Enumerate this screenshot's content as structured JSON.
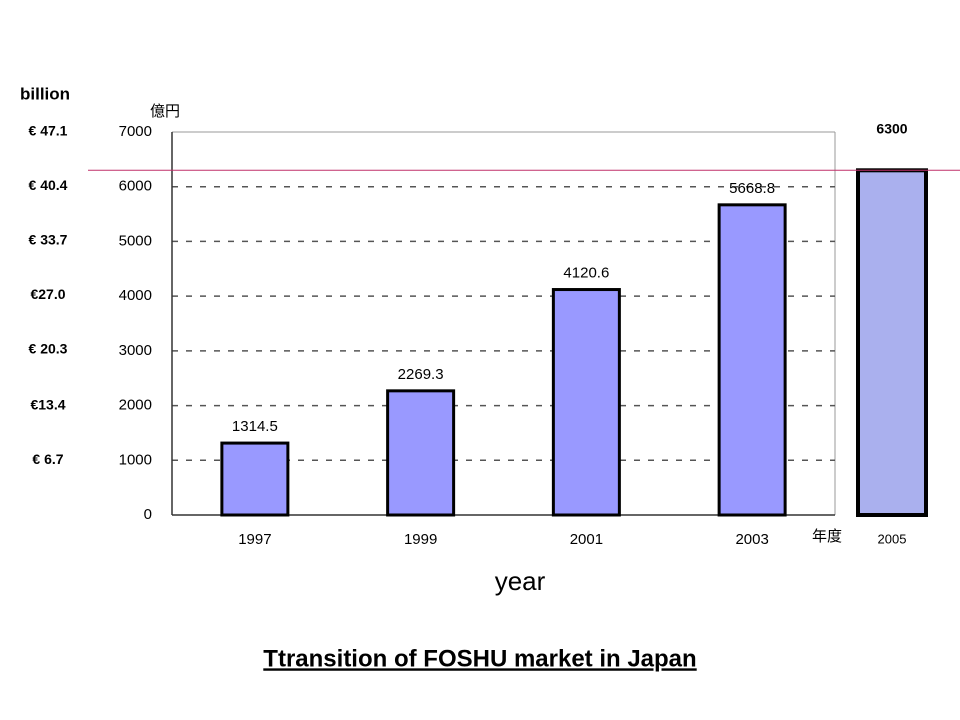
{
  "chart_data": {
    "type": "bar",
    "title": "Ttransition of FOSHU market in Japan",
    "y_label": "億円",
    "y2_label": "billion",
    "x_label": "年度",
    "x_label_2": "year",
    "categories": [
      "1997",
      "1999",
      "2001",
      "2003",
      "2005"
    ],
    "values": [
      1314.5,
      2269.3,
      4120.6,
      5668.8,
      6300
    ],
    "colors": [
      "#9999ff",
      "#9999ff",
      "#9999ff",
      "#9999ff",
      "#aab0ee"
    ],
    "ylim": [
      0,
      7000
    ],
    "yticks": [
      0,
      1000,
      2000,
      3000,
      4000,
      5000,
      6000,
      7000
    ],
    "y2lim": [
      0,
      47.1
    ],
    "y2ticks": [
      {
        "value": 6.7,
        "label": "€ 6.7"
      },
      {
        "value": 13.4,
        "label": "€13.4"
      },
      {
        "value": 20.3,
        "label": "€ 20.3"
      },
      {
        "value": 27.0,
        "label": "€27.0"
      },
      {
        "value": 33.7,
        "label": "€ 33.7"
      },
      {
        "value": 40.4,
        "label": "€ 40.4"
      },
      {
        "value": 47.1,
        "label": "€ 47.1"
      }
    ],
    "grid": true
  }
}
